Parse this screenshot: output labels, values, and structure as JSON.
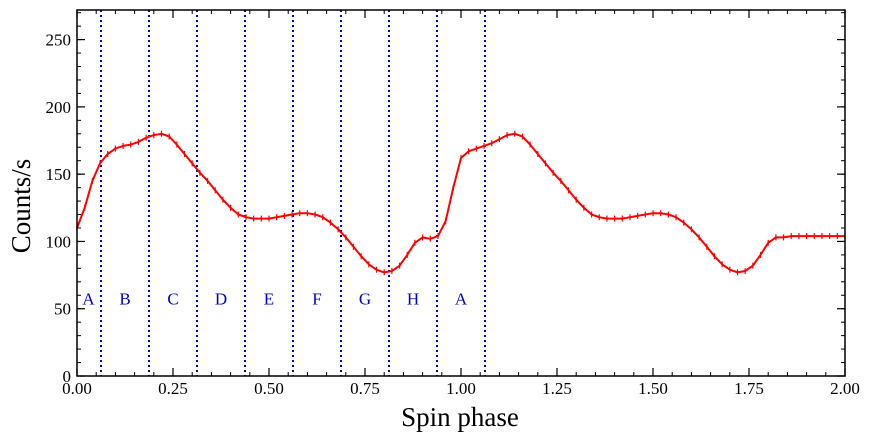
{
  "chart_data": {
    "type": "line",
    "title": "",
    "xlabel": "Spin phase",
    "ylabel": "Counts/s",
    "xlim": [
      0,
      2
    ],
    "ylim": [
      0,
      272
    ],
    "x_ticks": [
      "0.00",
      "0.25",
      "0.50",
      "0.75",
      "1.00",
      "1.25",
      "1.50",
      "1.75",
      "2.00"
    ],
    "y_ticks": [
      "0",
      "50",
      "100",
      "150",
      "200",
      "250"
    ],
    "grid": false,
    "legend": "none",
    "colors": {
      "series": "#ff0000",
      "phase_lines": "#0000cc",
      "region_labels": "#0000cc"
    },
    "phase_boundaries": [
      0.0625,
      0.1875,
      0.3125,
      0.4375,
      0.5625,
      0.6875,
      0.8125,
      0.9375,
      1.0625
    ],
    "regions": [
      {
        "label": "A",
        "x": 0.03
      },
      {
        "label": "B",
        "x": 0.125
      },
      {
        "label": "C",
        "x": 0.25
      },
      {
        "label": "D",
        "x": 0.375
      },
      {
        "label": "E",
        "x": 0.5
      },
      {
        "label": "F",
        "x": 0.625
      },
      {
        "label": "G",
        "x": 0.75
      },
      {
        "label": "H",
        "x": 0.875
      },
      {
        "label": "A",
        "x": 1.0
      }
    ],
    "regions_y": 53,
    "series": [
      {
        "x": [
          0.0,
          0.02,
          0.04,
          0.06,
          0.08,
          0.1,
          0.12,
          0.14,
          0.16,
          0.18,
          0.2,
          0.22,
          0.24,
          0.26,
          0.28,
          0.3,
          0.32,
          0.34,
          0.36,
          0.38,
          0.4,
          0.42,
          0.44,
          0.46,
          0.48,
          0.5,
          0.52,
          0.54,
          0.56,
          0.58,
          0.6,
          0.62,
          0.64,
          0.66,
          0.68,
          0.7,
          0.72,
          0.74,
          0.76,
          0.78,
          0.8,
          0.82,
          0.84,
          0.86,
          0.88,
          0.9,
          0.92,
          0.94,
          0.96,
          0.98,
          1.0,
          1.02,
          1.04,
          1.06,
          1.08,
          1.1,
          1.12,
          1.14,
          1.16,
          1.18,
          1.2,
          1.22,
          1.24,
          1.26,
          1.28,
          1.3,
          1.32,
          1.34,
          1.36,
          1.38,
          1.4,
          1.42,
          1.44,
          1.46,
          1.48,
          1.5,
          1.52,
          1.54,
          1.56,
          1.58,
          1.6,
          1.62,
          1.64,
          1.66,
          1.68,
          1.7,
          1.72,
          1.74,
          1.76,
          1.78,
          1.8,
          1.82,
          1.84,
          1.86,
          1.88,
          1.9,
          1.92,
          1.94,
          1.96,
          1.98,
          2.0
        ],
        "y": [
          110,
          125,
          145,
          158,
          165,
          169,
          171,
          172,
          174,
          177,
          179,
          180,
          178,
          172,
          165,
          158,
          151,
          145,
          138,
          131,
          125,
          120,
          118,
          117,
          117,
          117,
          118,
          119,
          120,
          121,
          121,
          120,
          118,
          114,
          109,
          103,
          96,
          89,
          83,
          79,
          77,
          78,
          82,
          90,
          99,
          103,
          102,
          104,
          115,
          140,
          162,
          167,
          169,
          171,
          173,
          176,
          179,
          180,
          178,
          172,
          165,
          158,
          151,
          145,
          138,
          131,
          125,
          120,
          118,
          117,
          117,
          117,
          118,
          119,
          120,
          121,
          121,
          120,
          118,
          114,
          109,
          103,
          96,
          89,
          83,
          79,
          77,
          78,
          82,
          90,
          99,
          103,
          103,
          104,
          104,
          104,
          104,
          104,
          104,
          104,
          104
        ]
      }
    ]
  }
}
